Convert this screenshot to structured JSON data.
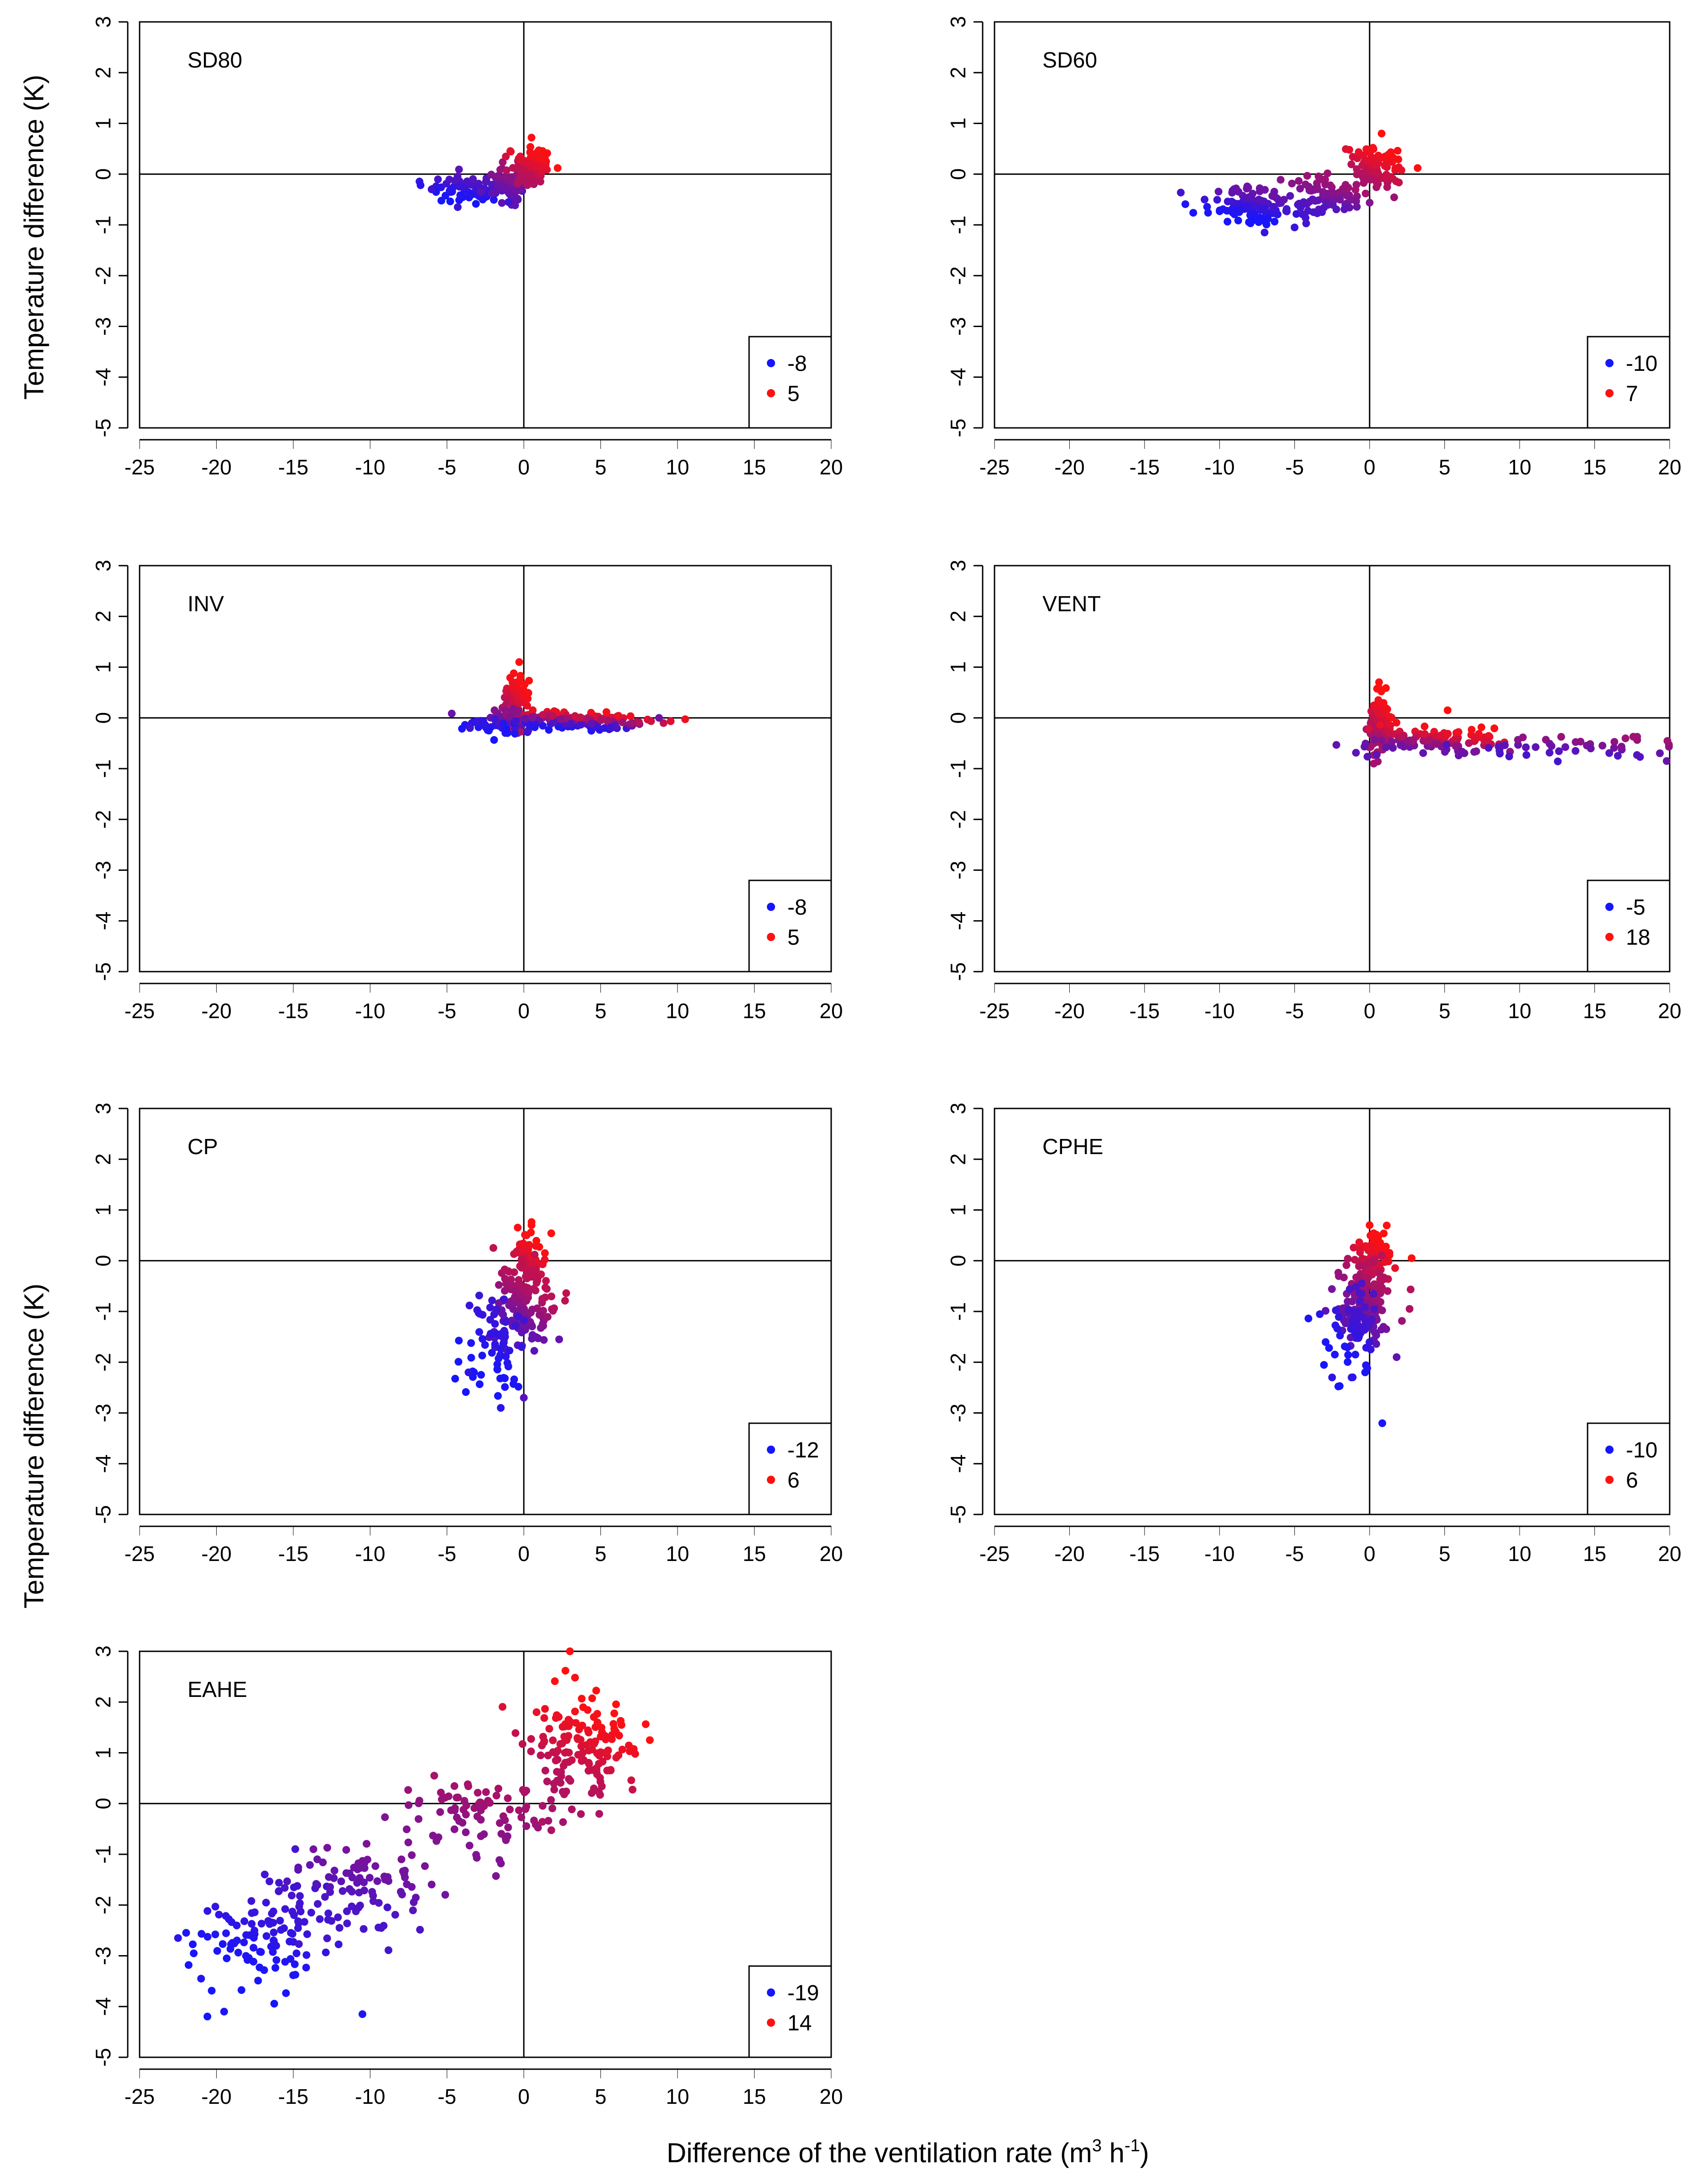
{
  "figure": {
    "y_axis_title": "Temperature difference (K)",
    "x_axis_title_main": "Difference of the ventilation rate (m",
    "x_axis_sup1": "3",
    "x_axis_mid": " h",
    "x_axis_sup2": "-1",
    "x_axis_close": ")",
    "low_color": "#1515ff",
    "high_color": "#ff1010"
  },
  "chart_data": [
    {
      "type": "scatter",
      "title": "SD80",
      "xlim": [
        -25,
        20
      ],
      "ylim": [
        -5,
        3
      ],
      "x_ticks": [
        -25,
        -20,
        -15,
        -10,
        -5,
        0,
        5,
        10,
        15,
        20
      ],
      "y_ticks": [
        3,
        2,
        1,
        0,
        -1,
        -2,
        -3,
        -4,
        -5
      ],
      "legend": [
        {
          "label": "-8",
          "color": "#1515ff"
        },
        {
          "label": "5",
          "color": "#ff1010"
        }
      ],
      "legend_placement": "bottom-right",
      "color_range": [
        -8,
        5
      ],
      "clusters": [
        {
          "cx": -3.5,
          "cy": -0.3,
          "sx": 1.3,
          "sy": 0.13,
          "n": 80,
          "ramp": [
            0.0,
            0.3
          ]
        },
        {
          "cx": -1.0,
          "cy": -0.15,
          "sx": 0.8,
          "sy": 0.18,
          "n": 60,
          "ramp": [
            0.3,
            0.6
          ]
        },
        {
          "cx": 0.5,
          "cy": 0.15,
          "sx": 0.7,
          "sy": 0.2,
          "n": 80,
          "ramp": [
            0.65,
            1.0
          ]
        }
      ],
      "points": [
        [
          -6.0,
          -0.3
        ],
        [
          -4.3,
          -0.65
        ],
        [
          -1.0,
          -0.55
        ],
        [
          0.5,
          0.72
        ],
        [
          2.2,
          0.12
        ]
      ]
    },
    {
      "type": "scatter",
      "title": "SD60",
      "xlim": [
        -25,
        20
      ],
      "ylim": [
        -5,
        3
      ],
      "x_ticks": [
        -25,
        -20,
        -15,
        -10,
        -5,
        0,
        5,
        10,
        15,
        20
      ],
      "y_ticks": [
        3,
        2,
        1,
        0,
        -1,
        -2,
        -3,
        -4,
        -5
      ],
      "legend": [
        {
          "label": "-10",
          "color": "#1515ff"
        },
        {
          "label": "7",
          "color": "#ff1010"
        }
      ],
      "legend_placement": "bottom-right",
      "color_range": [
        -10,
        7
      ],
      "clusters": [
        {
          "cx": -7.5,
          "cy": -0.6,
          "sx": 1.8,
          "sy": 0.17,
          "n": 110,
          "ramp": [
            0.0,
            0.4
          ]
        },
        {
          "cx": -3.0,
          "cy": -0.45,
          "sx": 1.4,
          "sy": 0.2,
          "n": 80,
          "ramp": [
            0.2,
            0.6
          ]
        },
        {
          "cx": 0.5,
          "cy": 0.1,
          "sx": 0.9,
          "sy": 0.25,
          "n": 90,
          "ramp": [
            0.6,
            1.0
          ]
        }
      ],
      "points": [
        [
          -11.0,
          -0.5
        ],
        [
          -7.0,
          -1.15
        ],
        [
          0.8,
          0.8
        ],
        [
          3.2,
          0.12
        ],
        [
          -5.0,
          -1.05
        ]
      ]
    },
    {
      "type": "scatter",
      "title": "INV",
      "xlim": [
        -25,
        20
      ],
      "ylim": [
        -5,
        3
      ],
      "x_ticks": [
        -25,
        -20,
        -15,
        -10,
        -5,
        0,
        5,
        10,
        15,
        20
      ],
      "y_ticks": [
        3,
        2,
        1,
        0,
        -1,
        -2,
        -3,
        -4,
        -5
      ],
      "legend": [
        {
          "label": "-8",
          "color": "#1515ff"
        },
        {
          "label": "5",
          "color": "#ff1010"
        }
      ],
      "legend_placement": "bottom-right",
      "color_range": [
        -8,
        5
      ],
      "clusters": [
        {
          "cx": -0.5,
          "cy": 0.3,
          "sx": 0.4,
          "sy": 0.28,
          "n": 90,
          "ramp": [
            0.6,
            1.0
          ]
        },
        {
          "cx": -1.5,
          "cy": -0.1,
          "sx": 1.0,
          "sy": 0.12,
          "n": 60,
          "ramp": [
            0.0,
            0.5
          ]
        },
        {
          "cx": 3.5,
          "cy": -0.05,
          "sx": 2.4,
          "sy": 0.1,
          "n": 140,
          "ramp": [
            0.0,
            1.0
          ]
        }
      ],
      "points": [
        [
          -0.3,
          1.1
        ],
        [
          -3.5,
          -0.2
        ],
        [
          8.8,
          0.0
        ]
      ]
    },
    {
      "type": "scatter",
      "title": "VENT",
      "xlim": [
        -25,
        20
      ],
      "ylim": [
        -5,
        3
      ],
      "x_ticks": [
        -25,
        -20,
        -15,
        -10,
        -5,
        0,
        5,
        10,
        15,
        20
      ],
      "y_ticks": [
        3,
        2,
        1,
        0,
        -1,
        -2,
        -3,
        -4,
        -5
      ],
      "legend": [
        {
          "label": "-5",
          "color": "#1515ff"
        },
        {
          "label": "18",
          "color": "#ff1010"
        }
      ],
      "legend_placement": "bottom-right",
      "color_range": [
        -5,
        18
      ],
      "clusters": [
        {
          "cx": 0.8,
          "cy": -0.1,
          "sx": 0.4,
          "sy": 0.3,
          "n": 110,
          "ramp": [
            0.6,
            1.0
          ]
        },
        {
          "cx": 4.5,
          "cy": -0.45,
          "sx": 2.3,
          "sy": 0.14,
          "n": 110,
          "ramp": [
            0.3,
            1.0
          ]
        },
        {
          "cx": 13.5,
          "cy": -0.55,
          "sx": 3.5,
          "sy": 0.12,
          "n": 45,
          "ramp": [
            0.2,
            0.6
          ]
        }
      ],
      "points": [
        [
          0.6,
          0.6
        ],
        [
          5.2,
          0.15
        ],
        [
          19.8,
          -0.85
        ]
      ]
    },
    {
      "type": "scatter",
      "title": "CP",
      "xlim": [
        -25,
        20
      ],
      "ylim": [
        -5,
        3
      ],
      "x_ticks": [
        -25,
        -20,
        -15,
        -10,
        -5,
        0,
        5,
        10,
        15,
        20
      ],
      "y_ticks": [
        3,
        2,
        1,
        0,
        -1,
        -2,
        -3,
        -4,
        -5
      ],
      "legend": [
        {
          "label": "-12",
          "color": "#1515ff"
        },
        {
          "label": "6",
          "color": "#ff1010"
        }
      ],
      "legend_placement": "bottom-right",
      "color_range": [
        -12,
        6
      ],
      "clusters": [
        {
          "cx": 0.4,
          "cy": 0.05,
          "sx": 0.5,
          "sy": 0.25,
          "n": 70,
          "ramp": [
            0.7,
            1.0
          ]
        },
        {
          "cx": -0.2,
          "cy": -0.9,
          "sx": 1.0,
          "sy": 0.45,
          "n": 150,
          "ramp": [
            0.25,
            0.75
          ]
        },
        {
          "cx": -1.8,
          "cy": -1.6,
          "sx": 1.1,
          "sy": 0.55,
          "n": 60,
          "ramp": [
            0.0,
            0.2
          ]
        }
      ],
      "points": [
        [
          0.5,
          0.7
        ],
        [
          -1.5,
          -2.9
        ],
        [
          0.0,
          -2.7
        ],
        [
          -3.6,
          -2.2
        ],
        [
          2.3,
          -1.55
        ]
      ]
    },
    {
      "type": "scatter",
      "title": "CPHE",
      "xlim": [
        -25,
        20
      ],
      "ylim": [
        -5,
        3
      ],
      "x_ticks": [
        -25,
        -20,
        -15,
        -10,
        -5,
        0,
        5,
        10,
        15,
        20
      ],
      "y_ticks": [
        3,
        2,
        1,
        0,
        -1,
        -2,
        -3,
        -4,
        -5
      ],
      "legend": [
        {
          "label": "-10",
          "color": "#1515ff"
        },
        {
          "label": "6",
          "color": "#ff1010"
        }
      ],
      "legend_placement": "bottom-right",
      "color_range": [
        -10,
        6
      ],
      "clusters": [
        {
          "cx": 0.3,
          "cy": 0.05,
          "sx": 0.6,
          "sy": 0.25,
          "n": 80,
          "ramp": [
            0.7,
            1.0
          ]
        },
        {
          "cx": -0.3,
          "cy": -0.8,
          "sx": 0.9,
          "sy": 0.4,
          "n": 130,
          "ramp": [
            0.3,
            0.7
          ]
        },
        {
          "cx": -1.2,
          "cy": -1.4,
          "sx": 0.9,
          "sy": 0.5,
          "n": 60,
          "ramp": [
            0.0,
            0.25
          ]
        }
      ],
      "points": [
        [
          0.0,
          0.7
        ],
        [
          -2.5,
          -2.3
        ],
        [
          -1.2,
          -2.3
        ],
        [
          2.8,
          0.05
        ],
        [
          1.8,
          -1.9
        ]
      ]
    },
    {
      "type": "scatter",
      "title": "EAHE",
      "xlim": [
        -25,
        20
      ],
      "ylim": [
        -5,
        3
      ],
      "x_ticks": [
        -25,
        -20,
        -15,
        -10,
        -5,
        0,
        5,
        10,
        15,
        20
      ],
      "y_ticks": [
        3,
        2,
        1,
        0,
        -1,
        -2,
        -3,
        -4,
        -5
      ],
      "legend": [
        {
          "label": "-19",
          "color": "#1515ff"
        },
        {
          "label": "14",
          "color": "#ff1010"
        }
      ],
      "legend_placement": "bottom-right",
      "color_range": [
        -19,
        14
      ],
      "clusters": [
        {
          "cx": -17.0,
          "cy": -2.6,
          "sx": 2.3,
          "sy": 0.55,
          "n": 110,
          "ramp": [
            0.0,
            0.2
          ]
        },
        {
          "cx": -10.5,
          "cy": -1.6,
          "sx": 2.4,
          "sy": 0.45,
          "n": 90,
          "ramp": [
            0.2,
            0.45
          ]
        },
        {
          "cx": -3.0,
          "cy": -0.2,
          "sx": 2.2,
          "sy": 0.4,
          "n": 80,
          "ramp": [
            0.45,
            0.65
          ]
        },
        {
          "cx": 3.8,
          "cy": 1.05,
          "sx": 1.8,
          "sy": 0.55,
          "n": 150,
          "ramp": [
            0.65,
            1.0
          ]
        }
      ],
      "points": [
        [
          -22.5,
          -2.65
        ],
        [
          -19.5,
          -4.1
        ],
        [
          -10.5,
          -4.15
        ],
        [
          3.0,
          3.0
        ],
        [
          -21.0,
          -3.45
        ],
        [
          8.2,
          1.25
        ]
      ]
    }
  ]
}
